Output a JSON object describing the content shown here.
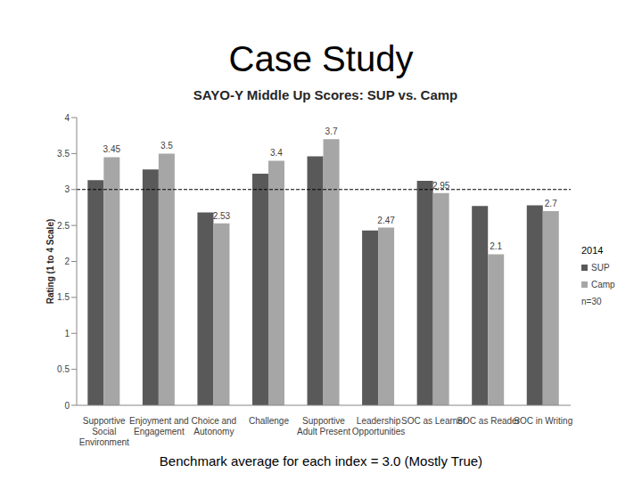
{
  "slide": {
    "title": "Case Study",
    "footer": "Benchmark average for each index = 3.0 (Mostly True)"
  },
  "chart_data": {
    "type": "bar",
    "title": "SAYO-Y Middle Up Scores: SUP vs. Camp",
    "y_label": "Rating (1 to 4 Scale)",
    "categories": [
      "Supportive Social Environment",
      "Enjoyment and Engagement",
      "Choice and Autonomy",
      "Challenge",
      "Supportive Adult Present",
      "Leadership Opportunities",
      "SOC as Learner",
      "SOC as Reader",
      "SOC in Writing"
    ],
    "series": [
      {
        "name": "SUP",
        "color": "#595959",
        "values": [
          3.13,
          3.28,
          2.68,
          3.22,
          3.46,
          2.43,
          3.12,
          2.77,
          2.78
        ]
      },
      {
        "name": "Camp",
        "color": "#a6a6a6",
        "values": [
          3.45,
          3.5,
          2.53,
          3.4,
          3.7,
          2.47,
          2.95,
          2.1,
          2.7
        ],
        "data_labels": true
      }
    ],
    "ylim": [
      0,
      4
    ],
    "yticks": [
      0,
      0.5,
      1,
      1.5,
      2,
      2.5,
      3,
      3.5,
      4
    ],
    "grid": false,
    "legend": "right",
    "legend_title": "2014",
    "note": "n=30",
    "benchmark": 3
  }
}
